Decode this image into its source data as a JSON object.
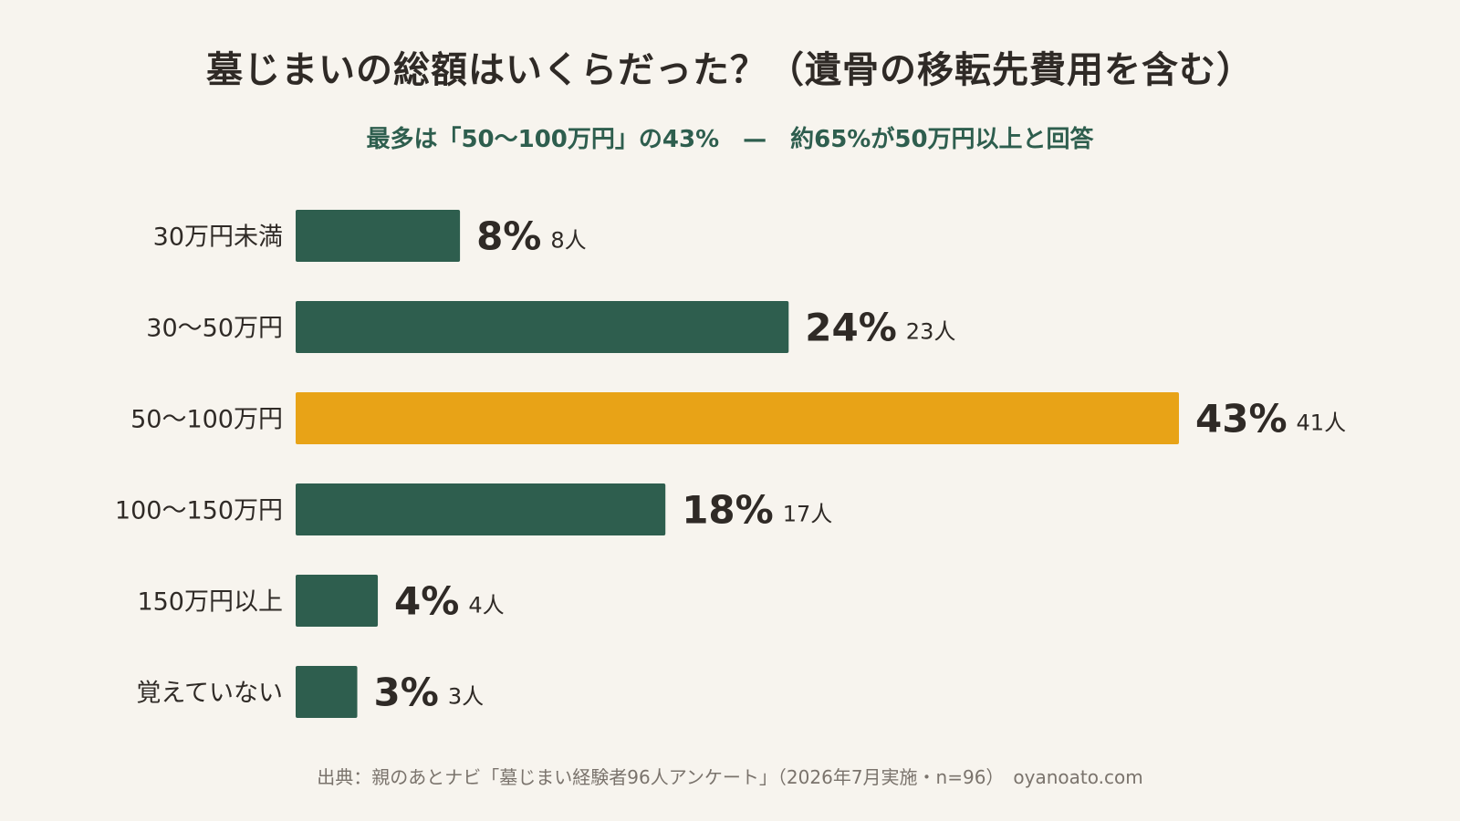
{
  "title": "墓じまいの総額はいくらだった？（遺骨の移転先費用を含む）",
  "subtitle": "最多は「50〜100万円」の43%　—　約65%が50万円以上と回答",
  "source": "出典：親のあとナビ「墓じまい経験者96人アンケート」（2026年7月実施・n=96）　oyanoato.com",
  "colors": {
    "bar": "#2e5e4e",
    "highlight": "#e8a317",
    "text": "#2f2a26",
    "background": "#f7f4ee"
  },
  "chart_data": {
    "type": "bar",
    "orientation": "horizontal",
    "categories": [
      "30万円未満",
      "30〜50万円",
      "50〜100万円",
      "100〜150万円",
      "150万円以上",
      "覚えていない"
    ],
    "values": [
      8,
      24,
      43,
      18,
      4,
      3
    ],
    "value_labels": [
      "8%",
      "24%",
      "43%",
      "18%",
      "4%",
      "3%"
    ],
    "count_labels": [
      "8人",
      "23人",
      "41人",
      "17人",
      "4人",
      "3人"
    ],
    "counts": [
      8,
      23,
      41,
      17,
      4,
      3
    ],
    "unit": "%",
    "highlight_category": "50〜100万円",
    "xlim": [
      0,
      43
    ],
    "grid": false,
    "legend": "none"
  }
}
